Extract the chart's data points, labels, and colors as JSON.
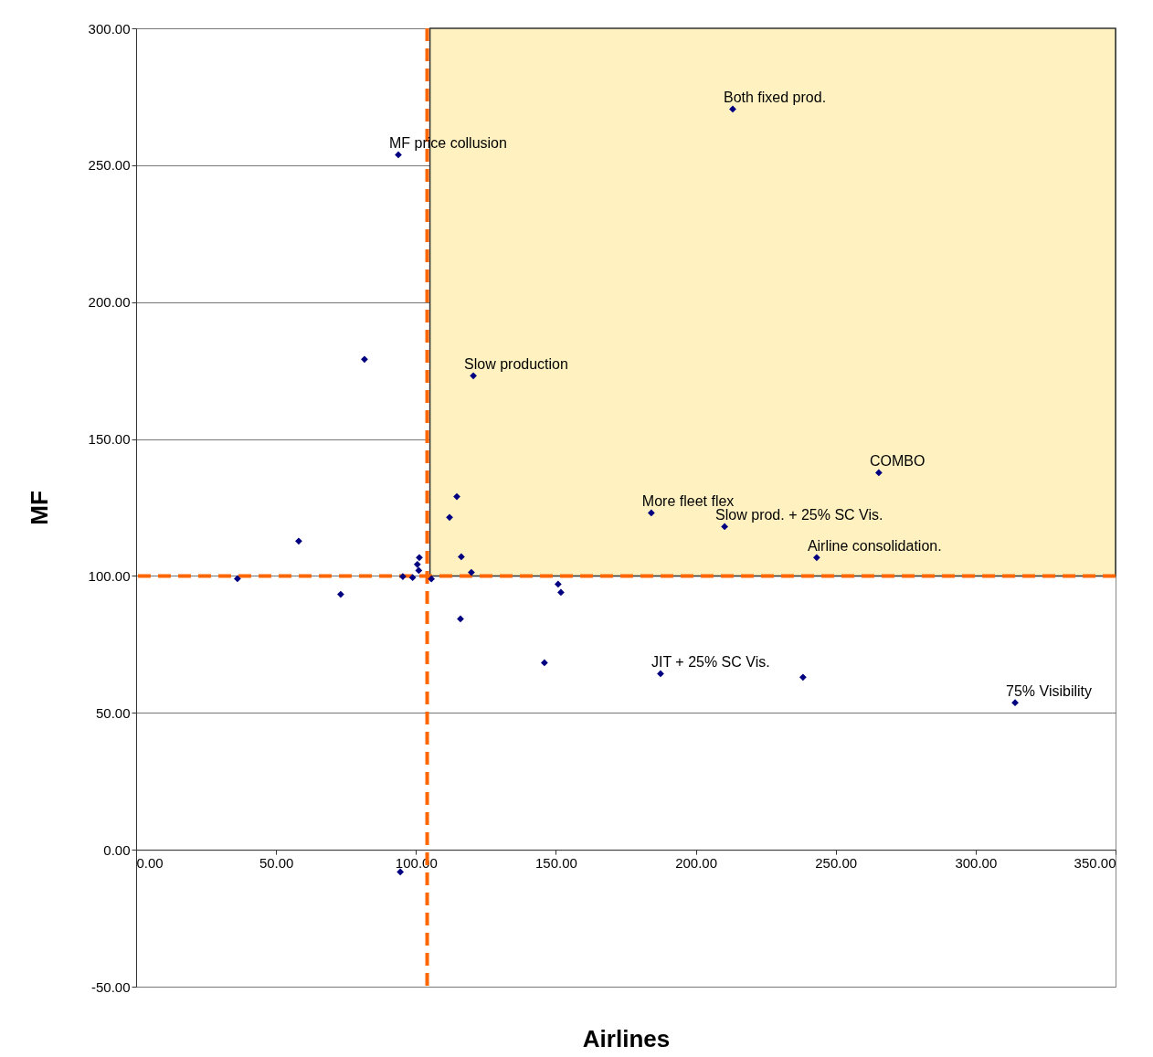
{
  "chart_data": {
    "type": "scatter",
    "xlabel": "Airlines",
    "ylabel": "MF",
    "x": [
      213.2,
      93.7,
      81.6,
      120.5,
      265.4,
      114.6,
      112.0,
      184.1,
      210.3,
      243.2,
      116.2,
      119.8,
      58.1,
      36.2,
      73.1,
      101.2,
      100.5,
      101.0,
      95.3,
      98.8,
      105.5,
      150.8,
      151.8,
      115.9,
      145.9,
      187.4,
      238.3,
      314.1,
      94.4
    ],
    "series": [
      {
        "color": "#000080",
        "values": [
          270.5,
          253.8,
          179.1,
          173.1,
          137.7,
          129.0,
          121.4,
          123.0,
          118.0,
          106.7,
          107.0,
          101.3,
          112.7,
          99.0,
          93.3,
          106.7,
          104.2,
          102.0,
          99.8,
          99.4,
          98.9,
          97.0,
          94.0,
          84.3,
          68.3,
          64.3,
          63.0,
          53.7,
          -8.1
        ]
      }
    ],
    "marker": "diamond",
    "grid": "y",
    "xlim": [
      0,
      350
    ],
    "xticks": [
      {
        "value": 0,
        "label": "0.00"
      },
      {
        "value": 50,
        "label": "50.00"
      },
      {
        "value": 100,
        "label": "100.00"
      },
      {
        "value": 150,
        "label": "150.00"
      },
      {
        "value": 200,
        "label": "200.00"
      },
      {
        "value": 250,
        "label": "250.00"
      },
      {
        "value": 300,
        "label": "300.00"
      },
      {
        "value": 350,
        "label": "350.00"
      }
    ],
    "ylim": [
      -50,
      300
    ],
    "yticks": [
      {
        "value": -50,
        "label": "-50.00"
      },
      {
        "value": 0,
        "label": "0.00"
      },
      {
        "value": 50,
        "label": "50.00"
      },
      {
        "value": 100,
        "label": "100.00"
      },
      {
        "value": 150,
        "label": "150.00"
      },
      {
        "value": 200,
        "label": "200.00"
      },
      {
        "value": 250,
        "label": "250.00"
      },
      {
        "value": 300,
        "label": "300.00"
      }
    ],
    "ref_lines": [
      {
        "axis": "x",
        "value": 104,
        "color": "#ff6600",
        "line_style": "dashed"
      },
      {
        "axis": "y",
        "value": 100,
        "color": "#ff6600",
        "line_style": "dashed"
      }
    ],
    "bands": [
      {
        "axis": "x",
        "from": 105,
        "to": 350,
        "color": "#fff2c0"
      }
    ],
    "annotations": [
      {
        "text": "Both fixed prod.",
        "x": 213.2,
        "y": 270.5
      },
      {
        "text": "MF price collusion",
        "x": 93.7,
        "y": 253.8
      },
      {
        "text": "Slow production",
        "x": 120.5,
        "y": 173.1
      },
      {
        "text": "COMBO",
        "x": 265.4,
        "y": 137.7
      },
      {
        "text": "More fleet flex",
        "x": 184.1,
        "y": 123.0
      },
      {
        "text": "Slow prod. + 25% SC Vis.",
        "x": 210.3,
        "y": 118.0
      },
      {
        "text": "Airline consolidation.",
        "x": 243.2,
        "y": 106.7
      },
      {
        "text": "JIT + 25% SC Vis.",
        "x": 187.4,
        "y": 64.3
      },
      {
        "text": "75% Visibility",
        "x": 314.1,
        "y": 53.7
      }
    ]
  }
}
